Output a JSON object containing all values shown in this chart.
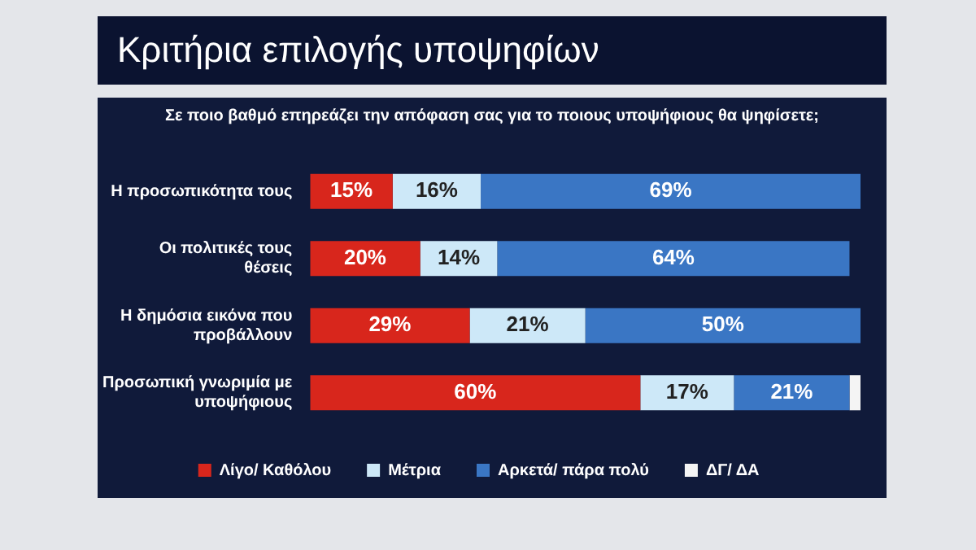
{
  "chart_data": {
    "type": "bar",
    "orientation": "horizontal",
    "stacked": true,
    "title": "Κριτήρια επιλογής υποψηφίων",
    "subtitle": "Σε ποιο βαθμό επηρεάζει την απόφαση σας για το ποιους υποψήφιους θα ψηφίσετε;",
    "categories": [
      "Η προσωπικότητα τους",
      "Οι πολιτικές τους θέσεις",
      "Η δημόσια εικόνα που προβάλλουν",
      "Προσωπική γνωριμία με υποψήφιους"
    ],
    "series": [
      {
        "name": "Λίγο/ Καθόλου",
        "color": "#d8261c",
        "values": [
          15,
          20,
          29,
          60
        ],
        "value_labels": [
          "15%",
          "20%",
          "29%",
          "60%"
        ]
      },
      {
        "name": "Μέτρια",
        "color": "#cde8f8",
        "values": [
          16,
          14,
          21,
          17
        ],
        "value_labels": [
          "16%",
          "14%",
          "21%",
          "17%"
        ]
      },
      {
        "name": "Αρκετά/ πάρα πολύ",
        "color": "#3a76c4",
        "values": [
          69,
          64,
          50,
          21
        ],
        "value_labels": [
          "69%",
          "64%",
          "50%",
          "21%"
        ]
      },
      {
        "name": "ΔΓ/ ΔΑ",
        "color": "#f4f4f4",
        "values": [
          0,
          0,
          0,
          2
        ],
        "value_labels": [
          null,
          null,
          null,
          null
        ]
      }
    ],
    "legend": "bottom"
  }
}
